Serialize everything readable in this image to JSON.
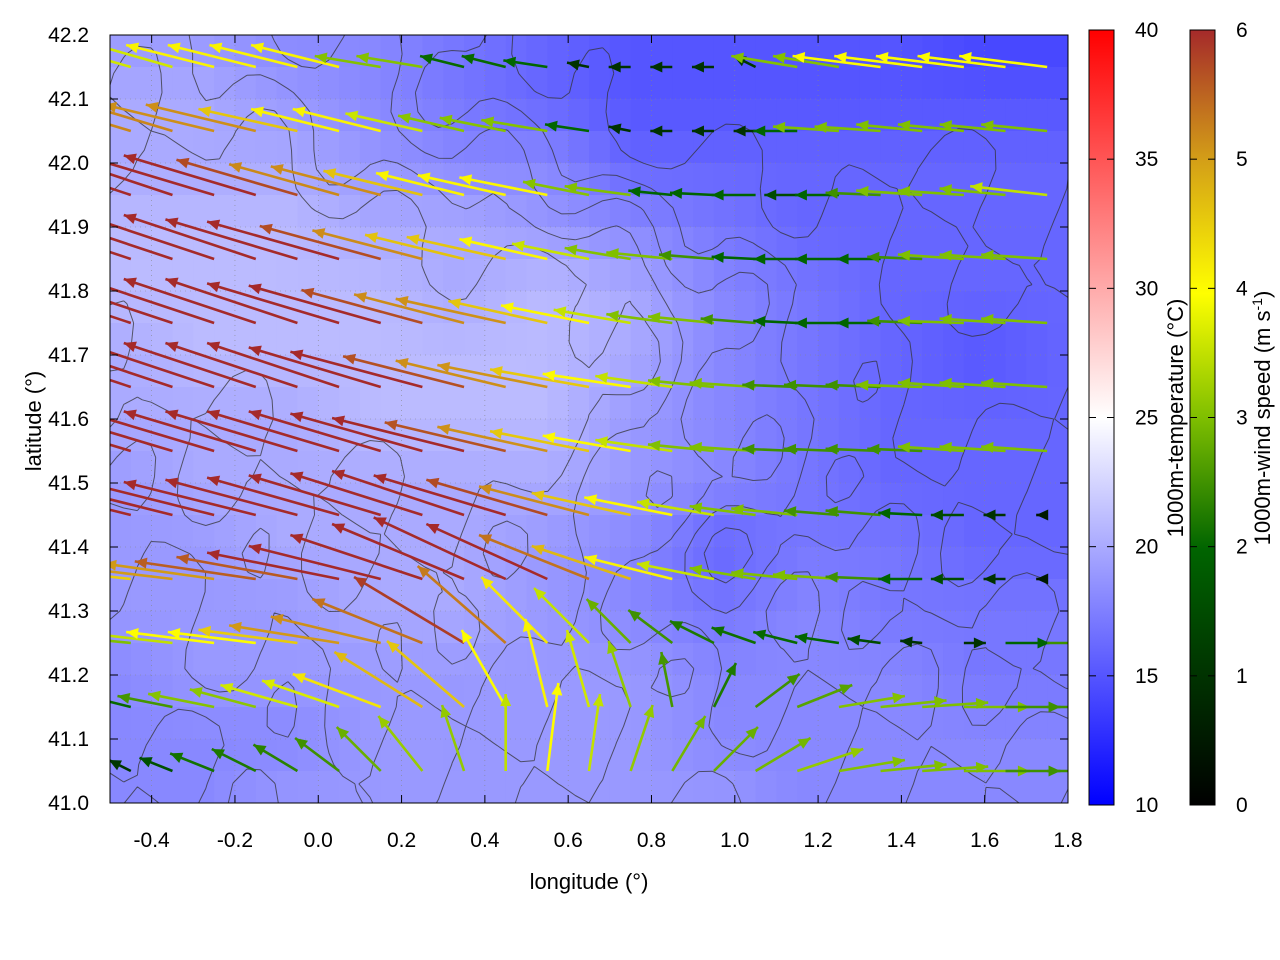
{
  "chart_data": {
    "type": "heatmap",
    "description_type": "vector field over temperature map with contour lines",
    "xlabel": "longitude (°)",
    "ylabel": "latitude (°)",
    "xlim": [
      -0.5,
      1.8
    ],
    "ylim": [
      41.0,
      42.2
    ],
    "x_ticks": [
      "-0.4",
      "-0.2",
      "0.0",
      "0.2",
      "0.4",
      "0.6",
      "0.8",
      "1.0",
      "1.2",
      "1.4",
      "1.6",
      "1.8"
    ],
    "y_ticks": [
      "41.0",
      "41.1",
      "41.2",
      "41.3",
      "41.4",
      "41.5",
      "41.6",
      "41.7",
      "41.8",
      "41.9",
      "42.0",
      "42.1",
      "42.2"
    ],
    "grid": true,
    "temperature_colorbar": {
      "label": "1000m-temperature (°C)",
      "range": [
        10,
        40
      ],
      "ticks": [
        "10",
        "15",
        "20",
        "25",
        "30",
        "35",
        "40"
      ],
      "colors": [
        "#0000ff",
        "#ffffff",
        "#ff0000"
      ]
    },
    "windspeed_colorbar": {
      "label_main": "1000m-wind speed (m s",
      "label_sup": "-1",
      "label_end": ")",
      "range": [
        0,
        6
      ],
      "ticks": [
        "0",
        "1",
        "2",
        "3",
        "4",
        "5",
        "6"
      ],
      "colors": [
        "#000000",
        "#006400",
        "#7fbf00",
        "#ffff00",
        "#d4a017",
        "#a52a2a"
      ]
    },
    "temperature_field": {
      "note": "approximate temperature (°C) on coarse grid, rows from lat 42.2 down to 41.0, cols lon -0.5 to 1.8",
      "values": [
        [
          19,
          19,
          18,
          18,
          17,
          16,
          15,
          15,
          15,
          15,
          14,
          14
        ],
        [
          20,
          20,
          19,
          18,
          17,
          16,
          15,
          15,
          15,
          15,
          15,
          15
        ],
        [
          20,
          20,
          20,
          19,
          18,
          18,
          16,
          16,
          16,
          16,
          16,
          16
        ],
        [
          21,
          21,
          21,
          20,
          20,
          19,
          18,
          17,
          16,
          16,
          16,
          16
        ],
        [
          21,
          21,
          21,
          21,
          20,
          21,
          20,
          18,
          17,
          16,
          16,
          16
        ],
        [
          20,
          21,
          21,
          21,
          21,
          21,
          20,
          18,
          17,
          16,
          15,
          16
        ],
        [
          20,
          20,
          20,
          21,
          21,
          21,
          19,
          18,
          17,
          16,
          16,
          16
        ],
        [
          19,
          20,
          20,
          20,
          20,
          20,
          19,
          18,
          17,
          16,
          16,
          16
        ],
        [
          19,
          19,
          20,
          20,
          20,
          19,
          18,
          16,
          17,
          17,
          16,
          16
        ],
        [
          19,
          19,
          19,
          20,
          20,
          19,
          18,
          17,
          18,
          17,
          17,
          17
        ],
        [
          18,
          19,
          19,
          19,
          19,
          19,
          19,
          18,
          18,
          18,
          17,
          17
        ],
        [
          18,
          18,
          18,
          19,
          19,
          19,
          19,
          18,
          18,
          18,
          18,
          18
        ],
        [
          18,
          18,
          19,
          19,
          19,
          19,
          19,
          19,
          18,
          18,
          18,
          18
        ]
      ]
    },
    "wind_field": {
      "note": "approximate wind (u,v in m/s) on grid; rows lat 42.15 → 41.05 step 0.1, cols lon -0.45 → 1.75 step 0.1",
      "rows": [
        {
          "lat": 42.15,
          "u": [
            -3.5,
            -3.5,
            -4,
            -4,
            -4,
            -4,
            -3,
            -3,
            -2,
            -2,
            -2,
            -1,
            -1,
            -1,
            -1,
            -1,
            -3,
            -3,
            -4,
            -4,
            -4,
            -4,
            -4
          ],
          "v": [
            1,
            1,
            1,
            1,
            1,
            1,
            0.5,
            0.5,
            0.5,
            0.5,
            0.3,
            0.2,
            0,
            0,
            0,
            0.5,
            0.5,
            0.5,
            0.5,
            0.5,
            0.5,
            0.5,
            0.5
          ]
        },
        {
          "lat": 42.05,
          "u": [
            -5,
            -5,
            -5,
            -5,
            -4.5,
            -4,
            -4,
            -3.5,
            -3,
            -3,
            -3,
            -2,
            -1,
            -1,
            -1,
            -1,
            -2,
            -3,
            -3,
            -3,
            -3,
            -3,
            -3
          ],
          "v": [
            1.5,
            1.5,
            1.2,
            1.2,
            1,
            1,
            1,
            0.8,
            0.7,
            0.6,
            0.5,
            0.3,
            0.2,
            0,
            0,
            0,
            0,
            0.2,
            0.2,
            0.3,
            0.3,
            0.3,
            0.3
          ]
        },
        {
          "lat": 41.95,
          "u": [
            -6,
            -6,
            -6,
            -6,
            -5.5,
            -5,
            -5,
            -4.5,
            -4,
            -4,
            -4,
            -3,
            -3,
            -2,
            -2,
            -2,
            -1.5,
            -2,
            -2.5,
            -3,
            -3,
            -3,
            -3.5
          ],
          "v": [
            2,
            2,
            1.8,
            1.8,
            1.6,
            1.4,
            1.3,
            1.1,
            1,
            0.9,
            0.8,
            0.6,
            0.4,
            0.2,
            0.1,
            0,
            0,
            0,
            0.1,
            0.2,
            0.2,
            0.3,
            0.4
          ]
        },
        {
          "lat": 41.85,
          "u": [
            -6,
            -6,
            -6,
            -6,
            -6,
            -6,
            -5.5,
            -5,
            -4.5,
            -4.5,
            -4,
            -3.5,
            -3,
            -3,
            -2.5,
            -2,
            -2,
            -2,
            -2,
            -2.5,
            -3,
            -3,
            -3
          ],
          "v": [
            2,
            2,
            2,
            2,
            1.8,
            1.7,
            1.5,
            1.3,
            1.1,
            1,
            0.9,
            0.7,
            0.5,
            0.3,
            0.2,
            0.1,
            0,
            0,
            0,
            0.1,
            0.2,
            0.2,
            0.2
          ]
        },
        {
          "lat": 41.75,
          "u": [
            -6,
            -6,
            -6,
            -6,
            -6,
            -6,
            -6,
            -5.5,
            -5,
            -5,
            -4.5,
            -4,
            -3.5,
            -3,
            -3,
            -2.5,
            -2,
            -2,
            -2,
            -2.5,
            -3,
            -3,
            -3
          ],
          "v": [
            2,
            2,
            2,
            2,
            2,
            1.8,
            1.7,
            1.5,
            1.3,
            1.1,
            1,
            0.8,
            0.6,
            0.4,
            0.3,
            0.2,
            0.1,
            0,
            0,
            0.1,
            0.1,
            0.2,
            0.2
          ]
        },
        {
          "lat": 41.65,
          "u": [
            -6,
            -6,
            -6,
            -6,
            -6,
            -6,
            -6,
            -6,
            -5.5,
            -5,
            -5,
            -4.5,
            -4,
            -3.5,
            -3,
            -3,
            -2.5,
            -2.5,
            -2.5,
            -3,
            -3,
            -3,
            -3
          ],
          "v": [
            2,
            2,
            2,
            2,
            2,
            2,
            1.8,
            1.6,
            1.4,
            1.2,
            1,
            0.8,
            0.6,
            0.5,
            0.3,
            0.2,
            0.1,
            0.1,
            0.1,
            0.1,
            0.2,
            0.2,
            0.2
          ]
        },
        {
          "lat": 41.55,
          "u": [
            -6,
            -6,
            -6,
            -6,
            -6,
            -6,
            -6,
            -6,
            -6,
            -5.5,
            -5,
            -4.5,
            -4,
            -3.5,
            -3,
            -3,
            -2.5,
            -2.5,
            -2.5,
            -2.5,
            -3,
            -3,
            -3
          ],
          "v": [
            1.8,
            1.8,
            1.8,
            1.8,
            1.8,
            1.8,
            1.8,
            1.7,
            1.5,
            1.3,
            1.1,
            0.9,
            0.7,
            0.5,
            0.3,
            0.2,
            0.1,
            0.1,
            0.1,
            0.1,
            0.2,
            0.2,
            0.2
          ]
        },
        {
          "lat": 41.45,
          "u": [
            -6,
            -6,
            -6,
            -6,
            -6,
            -6,
            -6,
            -6,
            -6,
            -6,
            -5.5,
            -5,
            -4.5,
            -4,
            -3.5,
            -3,
            -3,
            -2.5,
            -2.5,
            -2,
            -1.5,
            -1,
            -0.5
          ],
          "v": [
            1.5,
            1.5,
            1.5,
            1.5,
            1.6,
            1.7,
            1.8,
            1.9,
            2,
            1.8,
            1.6,
            1.3,
            1,
            0.8,
            0.6,
            0.4,
            0.3,
            0.2,
            0.2,
            0.1,
            0,
            0,
            0
          ]
        },
        {
          "lat": 41.35,
          "u": [
            -4.5,
            -5,
            -5,
            -5.5,
            -5.5,
            -6,
            -6,
            -6,
            -6,
            -6,
            -5.5,
            -5,
            -4.5,
            -4,
            -3.5,
            -3,
            -3,
            -3,
            -2.5,
            -2,
            -1.5,
            -1,
            -0.5
          ],
          "v": [
            0.5,
            0.6,
            0.7,
            0.8,
            1,
            1.2,
            1.5,
            2,
            2.5,
            2.8,
            2.5,
            2,
            1.5,
            1,
            0.7,
            0.5,
            0.3,
            0.2,
            0.1,
            0,
            0,
            0,
            0
          ]
        },
        {
          "lat": 41.25,
          "u": [
            -3,
            -3.5,
            -4,
            -4,
            -4.5,
            -5,
            -5,
            -5,
            -5,
            -4,
            -3,
            -2.5,
            -2,
            -2,
            -2,
            -2,
            -2,
            -2,
            -1.5,
            -1,
            1,
            2,
            2.5
          ],
          "v": [
            0.3,
            0.4,
            0.5,
            0.5,
            0.6,
            0.8,
            1.2,
            2,
            3,
            3.5,
            3,
            2.5,
            2,
            1.5,
            1,
            0.7,
            0.5,
            0.3,
            0.2,
            0.1,
            0,
            0,
            0
          ]
        },
        {
          "lat": 41.15,
          "u": [
            -2,
            -2.5,
            -3,
            -3,
            -3.5,
            -3.5,
            -4,
            -4,
            -3.5,
            -2,
            -1,
            -1,
            -1,
            -0.5,
            1,
            2,
            2.5,
            3,
            3,
            3,
            3,
            2.5,
            2.5
          ],
          "v": [
            0.5,
            0.5,
            0.6,
            0.8,
            1,
            1.2,
            1.5,
            2.5,
            3,
            3.5,
            4,
            3.5,
            3,
            2.5,
            2,
            1.5,
            1,
            0.5,
            0.3,
            0.2,
            0,
            0,
            0
          ]
        },
        {
          "lat": 41.05,
          "u": [
            -1,
            -1.5,
            -2,
            -2,
            -2,
            -2,
            -2,
            -2,
            -1,
            0,
            0.5,
            0.5,
            1,
            1.5,
            2,
            2.5,
            3,
            3,
            3,
            3,
            3,
            2.5,
            2.5
          ],
          "v": [
            0.5,
            0.6,
            0.8,
            1,
            1.2,
            1.5,
            2,
            2.5,
            3,
            3.5,
            4,
            3.5,
            3,
            2.5,
            2,
            1.5,
            1,
            0.5,
            0.3,
            0.2,
            0,
            0,
            0
          ]
        }
      ]
    }
  }
}
